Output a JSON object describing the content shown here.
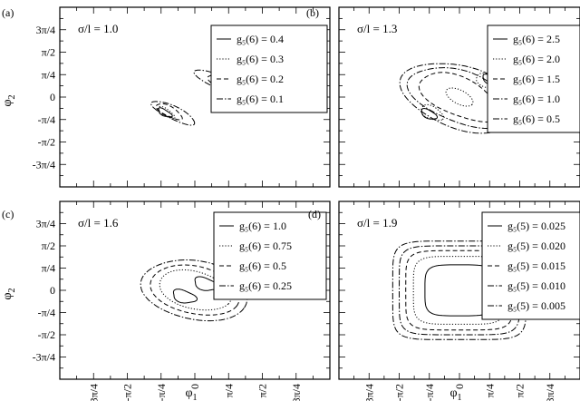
{
  "chart_data": [
    {
      "type": "line",
      "panel_label": "(a)",
      "annotation": "σ/l = 1.0",
      "ylabel": "φ",
      "ylabel_sub": "2",
      "xlabel": "",
      "x_tick_labels": [],
      "y_tick_labels": [
        "3π/4",
        "π/2",
        "π/4",
        "0",
        "-π/4",
        "-π/2",
        "-3π/4"
      ],
      "series": [
        {
          "name": "g₅(6) = 0.4",
          "style": "solid",
          "contours": [
            {
              "cx": 0.7,
              "cy": 0.55,
              "rx": 0.2,
              "ry": 0.09,
              "rot": -45,
              "wob": 0.15
            },
            {
              "cx": -0.7,
              "cy": -0.55,
              "rx": 0.2,
              "ry": 0.09,
              "rot": -45,
              "wob": 0.15
            }
          ]
        },
        {
          "name": "g₅(6) = 0.3",
          "style": "dotted",
          "contours": [
            {
              "cx": 0.68,
              "cy": 0.54,
              "rx": 0.26,
              "ry": 0.11,
              "rot": -45,
              "wob": 0.1
            },
            {
              "cx": -0.68,
              "cy": -0.54,
              "rx": 0.26,
              "ry": 0.11,
              "rot": -45,
              "wob": 0.1
            }
          ]
        },
        {
          "name": "g₅(6) = 0.2",
          "style": "dashed",
          "contours": [
            {
              "cx": 0.6,
              "cy": 0.5,
              "rx": 0.38,
              "ry": 0.15,
              "rot": -42,
              "wob": 0.08
            },
            {
              "cx": -0.6,
              "cy": -0.5,
              "rx": 0.38,
              "ry": 0.15,
              "rot": -42,
              "wob": 0.08
            }
          ]
        },
        {
          "name": "g₅(6) = 0.1",
          "style": "dashdot",
          "contours": [
            {
              "cx": 0.5,
              "cy": 0.55,
              "rx": 0.62,
              "ry": 0.2,
              "rot": -38,
              "wob": 0.05
            },
            {
              "cx": -0.5,
              "cy": -0.55,
              "rx": 0.62,
              "ry": 0.2,
              "rot": -38,
              "wob": 0.05
            }
          ]
        }
      ]
    },
    {
      "type": "line",
      "panel_label": "(b)",
      "annotation": "σ/l = 1.3",
      "ylabel": "",
      "ylabel_sub": "",
      "xlabel": "",
      "x_tick_labels": [],
      "y_tick_labels": [],
      "series": [
        {
          "name": "g₅(6) = 2.5",
          "style": "solid",
          "contours": [
            {
              "cx": 0.8,
              "cy": 0.6,
              "rx": 0.24,
              "ry": 0.13,
              "rot": -40,
              "wob": 0.1
            },
            {
              "cx": -0.8,
              "cy": -0.6,
              "rx": 0.24,
              "ry": 0.13,
              "rot": -40,
              "wob": 0.1
            }
          ]
        },
        {
          "name": "g₅(6) = 2.0",
          "style": "dotted",
          "contours": [
            {
              "cx": 0,
              "cy": 0,
              "rx": 0.42,
              "ry": 0.22,
              "rot": -40,
              "wob": 0
            },
            {
              "cx": 0.72,
              "cy": 0.55,
              "rx": 0.34,
              "ry": 0.2,
              "rot": -40,
              "wob": 0.08
            },
            {
              "cx": -0.72,
              "cy": -0.55,
              "rx": 0.34,
              "ry": 0.2,
              "rot": -40,
              "wob": 0.08
            }
          ]
        },
        {
          "name": "g₅(6) = 1.5",
          "style": "dashed",
          "contours": [
            {
              "cx": 0,
              "cy": 0,
              "rx": 1.2,
              "ry": 0.62,
              "rot": -35,
              "wob": 0.06
            }
          ]
        },
        {
          "name": "g₅(6) = 1.0",
          "style": "dashdot",
          "contours": [
            {
              "cx": 0,
              "cy": 0,
              "rx": 1.45,
              "ry": 0.85,
              "rot": -32,
              "wob": 0.05
            }
          ]
        },
        {
          "name": "g₅(6) = 0.5",
          "style": "dashdot",
          "contours": [
            {
              "cx": 0,
              "cy": 0,
              "rx": 1.62,
              "ry": 1.05,
              "rot": -30,
              "wob": 0.04
            }
          ]
        }
      ]
    },
    {
      "type": "line",
      "panel_label": "(c)",
      "annotation": "σ/l = 1.6",
      "ylabel": "φ",
      "ylabel_sub": "2",
      "xlabel": "φ",
      "xlabel_sub": "1",
      "x_tick_labels": [
        "-3π/4",
        "-π/2",
        "-π/4",
        "0",
        "π/4",
        "π/2",
        "3π/4"
      ],
      "y_tick_labels": [
        "3π/4",
        "π/2",
        "π/4",
        "0",
        "-π/4",
        "-π/2",
        "-3π/4"
      ],
      "series": [
        {
          "name": "g₅(6) = 1.0",
          "style": "solid",
          "contours": [
            {
              "cx": 0.25,
              "cy": 0.22,
              "rx": 0.3,
              "ry": 0.2,
              "rot": -35,
              "wob": 0.12
            },
            {
              "cx": -0.25,
              "cy": -0.22,
              "rx": 0.3,
              "ry": 0.2,
              "rot": -35,
              "wob": 0.12
            }
          ]
        },
        {
          "name": "g₅(6) = 0.75",
          "style": "dotted",
          "contours": [
            {
              "cx": 0,
              "cy": 0,
              "rx": 0.9,
              "ry": 0.62,
              "rot": -32,
              "wob": 0.02
            }
          ]
        },
        {
          "name": "g₅(6) = 0.5",
          "style": "dashed",
          "contours": [
            {
              "cx": 0,
              "cy": 0,
              "rx": 1.1,
              "ry": 0.8,
              "rot": -30,
              "wob": 0.02
            }
          ]
        },
        {
          "name": "g₅(6) = 0.25",
          "style": "dashdot",
          "contours": [
            {
              "cx": 0,
              "cy": 0,
              "rx": 1.3,
              "ry": 1.0,
              "rot": -28,
              "wob": 0.02
            }
          ]
        }
      ]
    },
    {
      "type": "line",
      "panel_label": "(d)",
      "annotation": "σ/l = 1.9",
      "ylabel": "",
      "ylabel_sub": "",
      "xlabel": "φ",
      "xlabel_sub": "1",
      "x_tick_labels": [
        "-3π/4",
        "-π/2",
        "-π/4",
        "0",
        "π/4",
        "π/2",
        "3π/4"
      ],
      "y_tick_labels": [],
      "series": [
        {
          "name": "g₅(5) = 0.025",
          "style": "solid",
          "contours": [
            {
              "cx": 0,
              "cy": 0,
              "rx": 0.9,
              "ry": 0.9,
              "rot": 0,
              "sq": 4.5
            }
          ]
        },
        {
          "name": "g₅(5) = 0.020",
          "style": "dotted",
          "contours": [
            {
              "cx": 0,
              "cy": 0,
              "rx": 1.2,
              "ry": 1.2,
              "rot": 0,
              "sq": 5
            }
          ]
        },
        {
          "name": "g₅(5) = 0.015",
          "style": "dashed",
          "contours": [
            {
              "cx": 0,
              "cy": 0,
              "rx": 1.4,
              "ry": 1.4,
              "rot": 0,
              "sq": 5.5
            }
          ]
        },
        {
          "name": "g₅(5) = 0.010",
          "style": "dashdot",
          "contours": [
            {
              "cx": 0,
              "cy": 0,
              "rx": 1.57,
              "ry": 1.57,
              "rot": 0,
              "sq": 6
            }
          ]
        },
        {
          "name": "g₅(5) = 0.005",
          "style": "dashdot",
          "contours": [
            {
              "cx": 0,
              "cy": 0,
              "rx": 1.74,
              "ry": 1.74,
              "rot": 0,
              "sq": 6
            }
          ]
        }
      ]
    }
  ]
}
